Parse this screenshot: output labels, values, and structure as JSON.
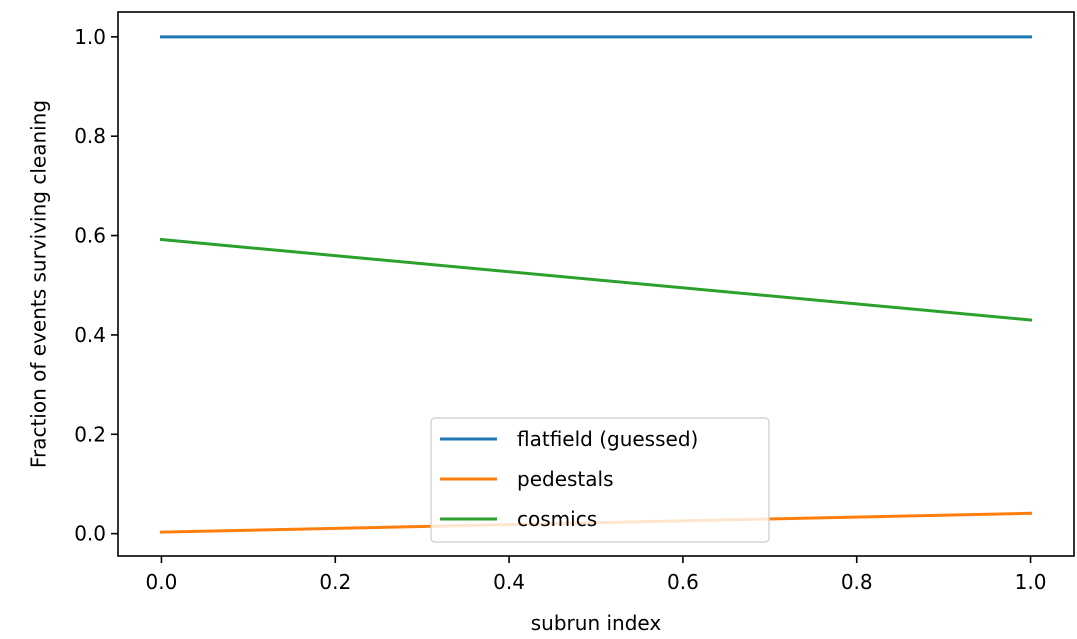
{
  "chart_data": {
    "type": "line",
    "xlabel": "subrun index",
    "ylabel": "Fraction of events surviving cleaning",
    "xlim": [
      -0.05,
      1.05
    ],
    "ylim": [
      -0.045,
      1.05
    ],
    "xticks": [
      0.0,
      0.2,
      0.4,
      0.6,
      0.8,
      1.0
    ],
    "xtick_labels": [
      "0.0",
      "0.2",
      "0.4",
      "0.6",
      "0.8",
      "1.0"
    ],
    "yticks": [
      0.0,
      0.2,
      0.4,
      0.6,
      0.8,
      1.0
    ],
    "ytick_labels": [
      "0.0",
      "0.2",
      "0.4",
      "0.6",
      "0.8",
      "1.0"
    ],
    "grid": false,
    "legend_position": "lower-center",
    "series": [
      {
        "name": "flatfield (guessed)",
        "color": "#1f77b4",
        "x": [
          0,
          1
        ],
        "y": [
          1.0,
          1.0
        ]
      },
      {
        "name": "pedestals",
        "color": "#ff7f0e",
        "x": [
          0,
          1
        ],
        "y": [
          0.003,
          0.041
        ]
      },
      {
        "name": "cosmics",
        "color": "#2ca02c",
        "x": [
          0,
          1
        ],
        "y": [
          0.592,
          0.43
        ]
      }
    ]
  }
}
